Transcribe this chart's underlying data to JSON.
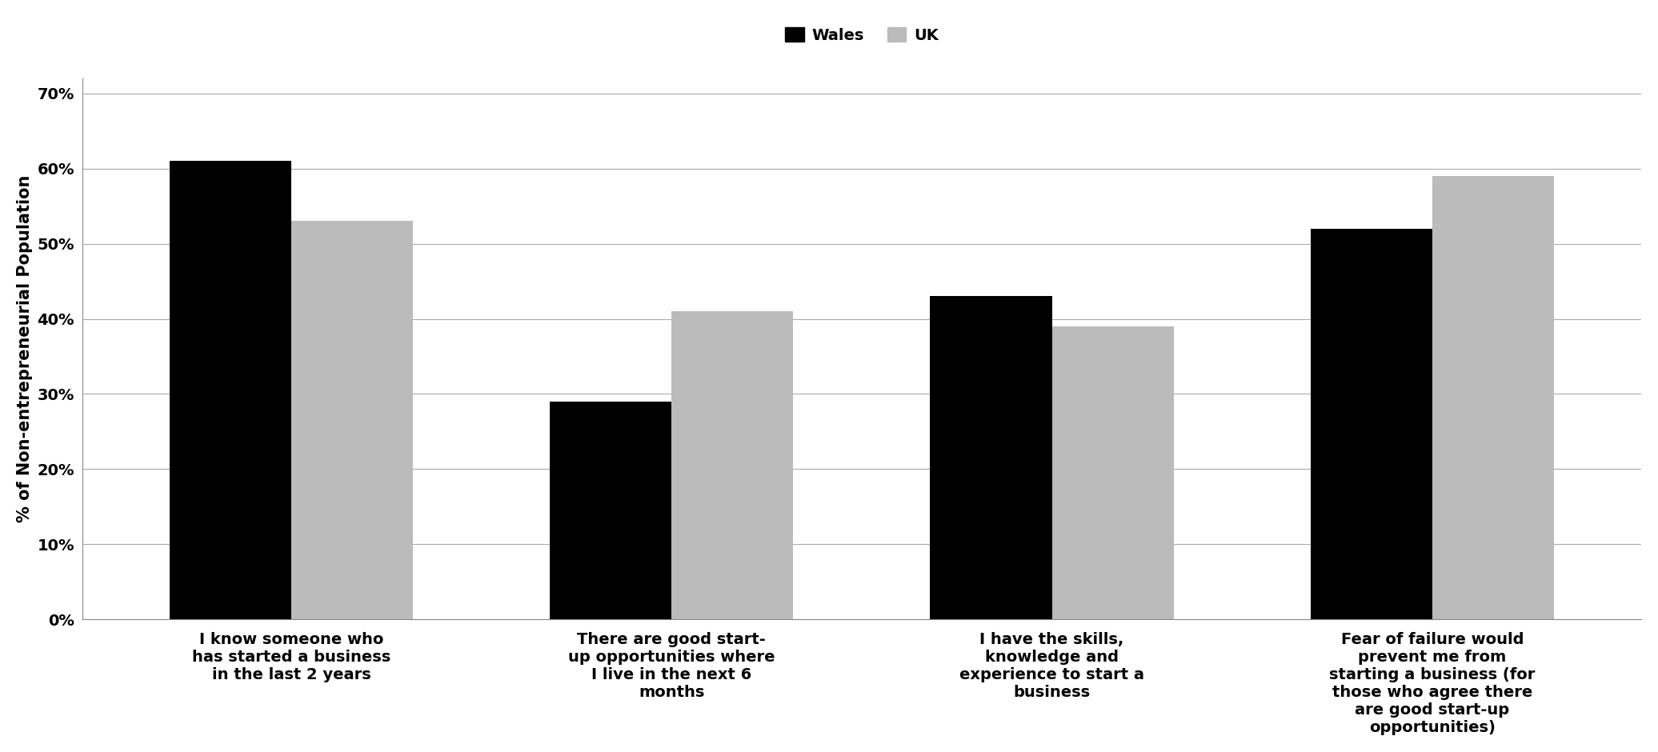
{
  "categories": [
    "I know someone who\nhas started a business\nin the last 2 years",
    "There are good start-\nup opportunities where\nI live in the next 6\nmonths",
    "I have the skills,\nknowledge and\nexperience to start a\nbusiness",
    "Fear of failure would\nprevent me from\nstarting a business (for\nthose who agree there\nare good start-up\nopportunities)"
  ],
  "wales_values": [
    0.61,
    0.29,
    0.43,
    0.52
  ],
  "uk_values": [
    0.53,
    0.41,
    0.39,
    0.59
  ],
  "wales_color": "#000000",
  "uk_color": "#bbbbbb",
  "ylabel": "% of Non-entrepreneurial Population",
  "yticks": [
    0.0,
    0.1,
    0.2,
    0.3,
    0.4,
    0.5,
    0.6,
    0.7
  ],
  "ytick_labels": [
    "0%",
    "10%",
    "20%",
    "30%",
    "40%",
    "50%",
    "60%",
    "70%"
  ],
  "ylim": [
    0,
    0.72
  ],
  "legend_labels": [
    "Wales",
    "UK"
  ],
  "bar_width": 0.32,
  "background_color": "#ffffff",
  "ylabel_fontsize": 15,
  "tick_fontsize": 14,
  "xlabel_fontsize": 14,
  "legend_fontsize": 14
}
